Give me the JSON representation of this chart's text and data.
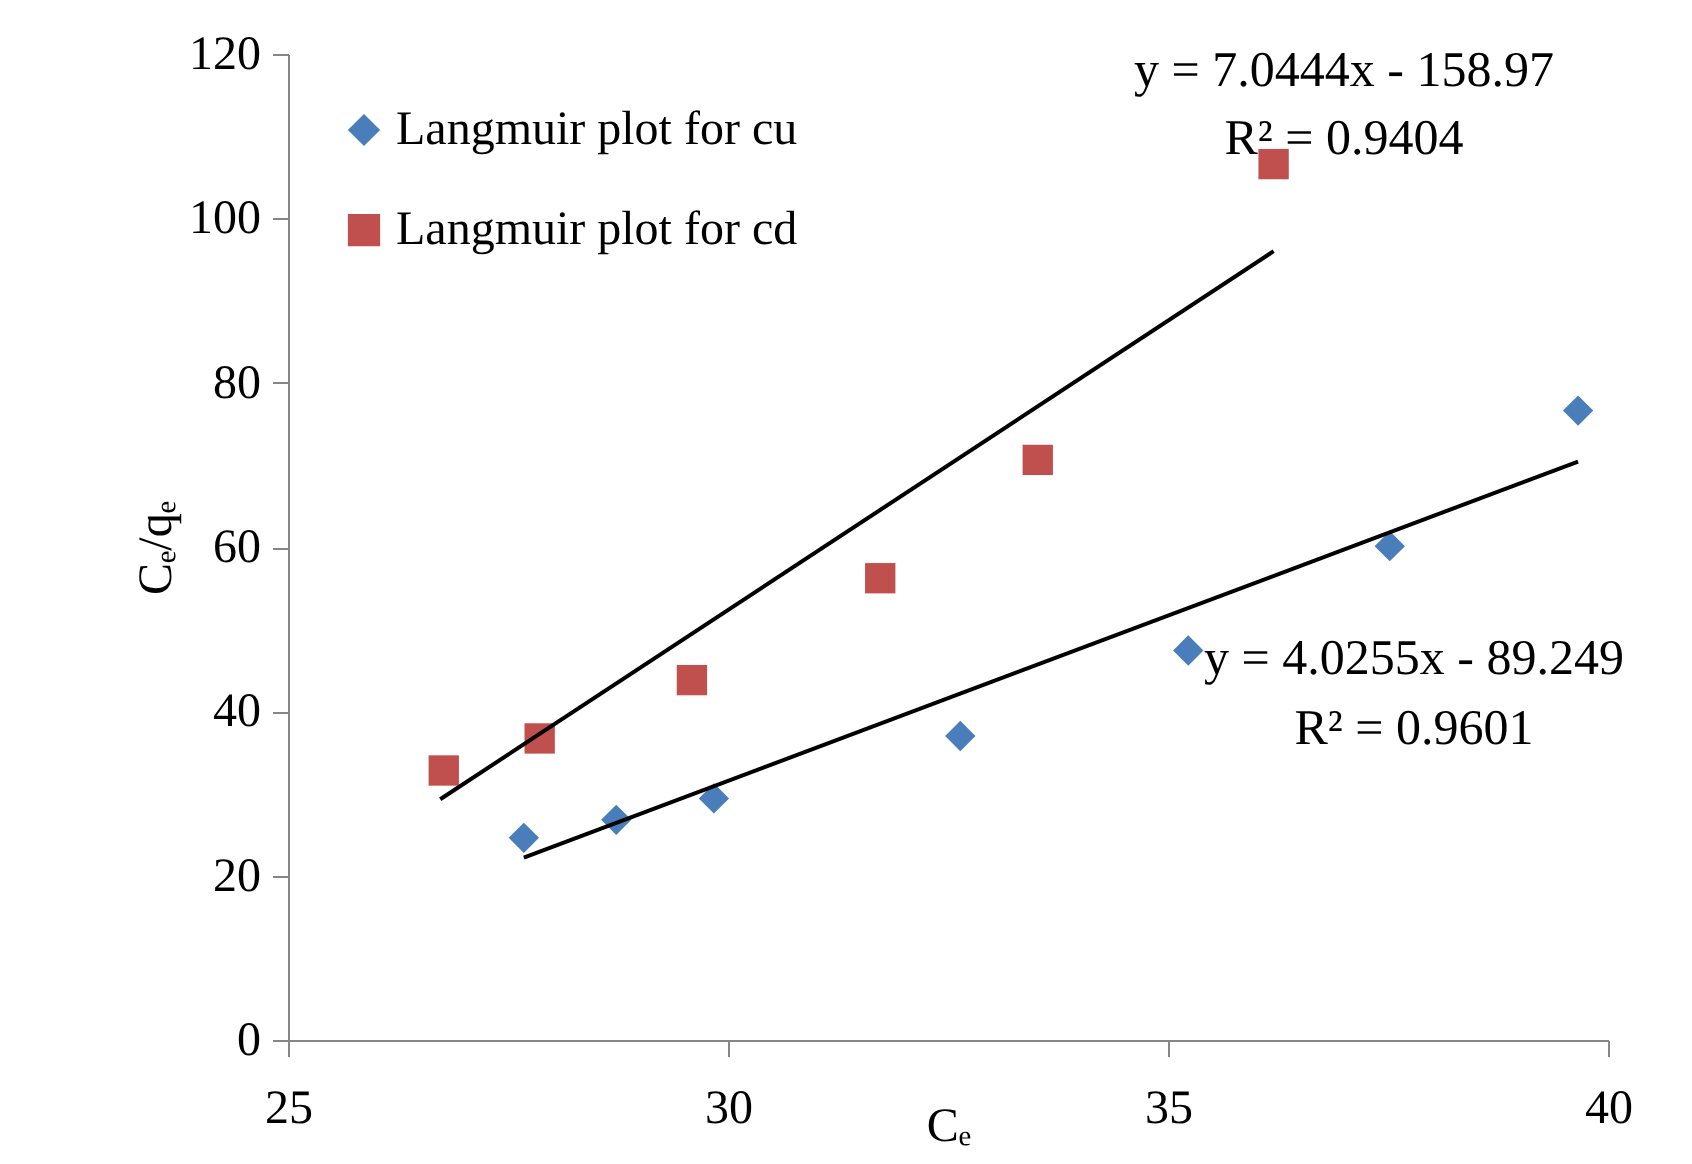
{
  "chart_data": {
    "type": "scatter",
    "xlabel": "Cₑ",
    "ylabel": "Cₑ/qₑ",
    "xlim": [
      25,
      40
    ],
    "xticks": [
      25,
      30,
      35,
      40
    ],
    "ylim": [
      0,
      120
    ],
    "yticks": [
      0,
      20,
      40,
      60,
      80,
      100,
      120
    ],
    "grid": false,
    "legend": "top left",
    "series": [
      {
        "name": "Langmuir plot for cu",
        "color": "#4a7ebb",
        "marker": "diamond",
        "x": [
          27.68,
          28.73,
          29.84,
          32.64,
          35.23,
          37.52,
          39.66
        ],
        "values": [
          24.6,
          26.8,
          29.4,
          37.0,
          47.4,
          60.1,
          76.6
        ]
      },
      {
        "name": "Langmuir plot for cd",
        "color": "#c0504d",
        "marker": "square",
        "x": [
          26.77,
          27.86,
          29.59,
          31.73,
          33.52,
          36.2
        ],
        "values": [
          32.8,
          36.7,
          43.8,
          56.2,
          70.6,
          106.6
        ]
      },
      {
        "type": "line",
        "color": "#000000",
        "x": [
          26.73,
          36.2
        ],
        "values": [
          29.3,
          96.0
        ]
      },
      {
        "type": "line",
        "color": "#000000",
        "x": [
          27.68,
          39.66
        ],
        "values": [
          22.2,
          70.4
        ]
      }
    ],
    "annotations": [
      "y = 7.0444x - 158.97",
      "R² = 0.9404",
      "y = 4.0255x - 89.249",
      "R² = 0.9601"
    ]
  }
}
